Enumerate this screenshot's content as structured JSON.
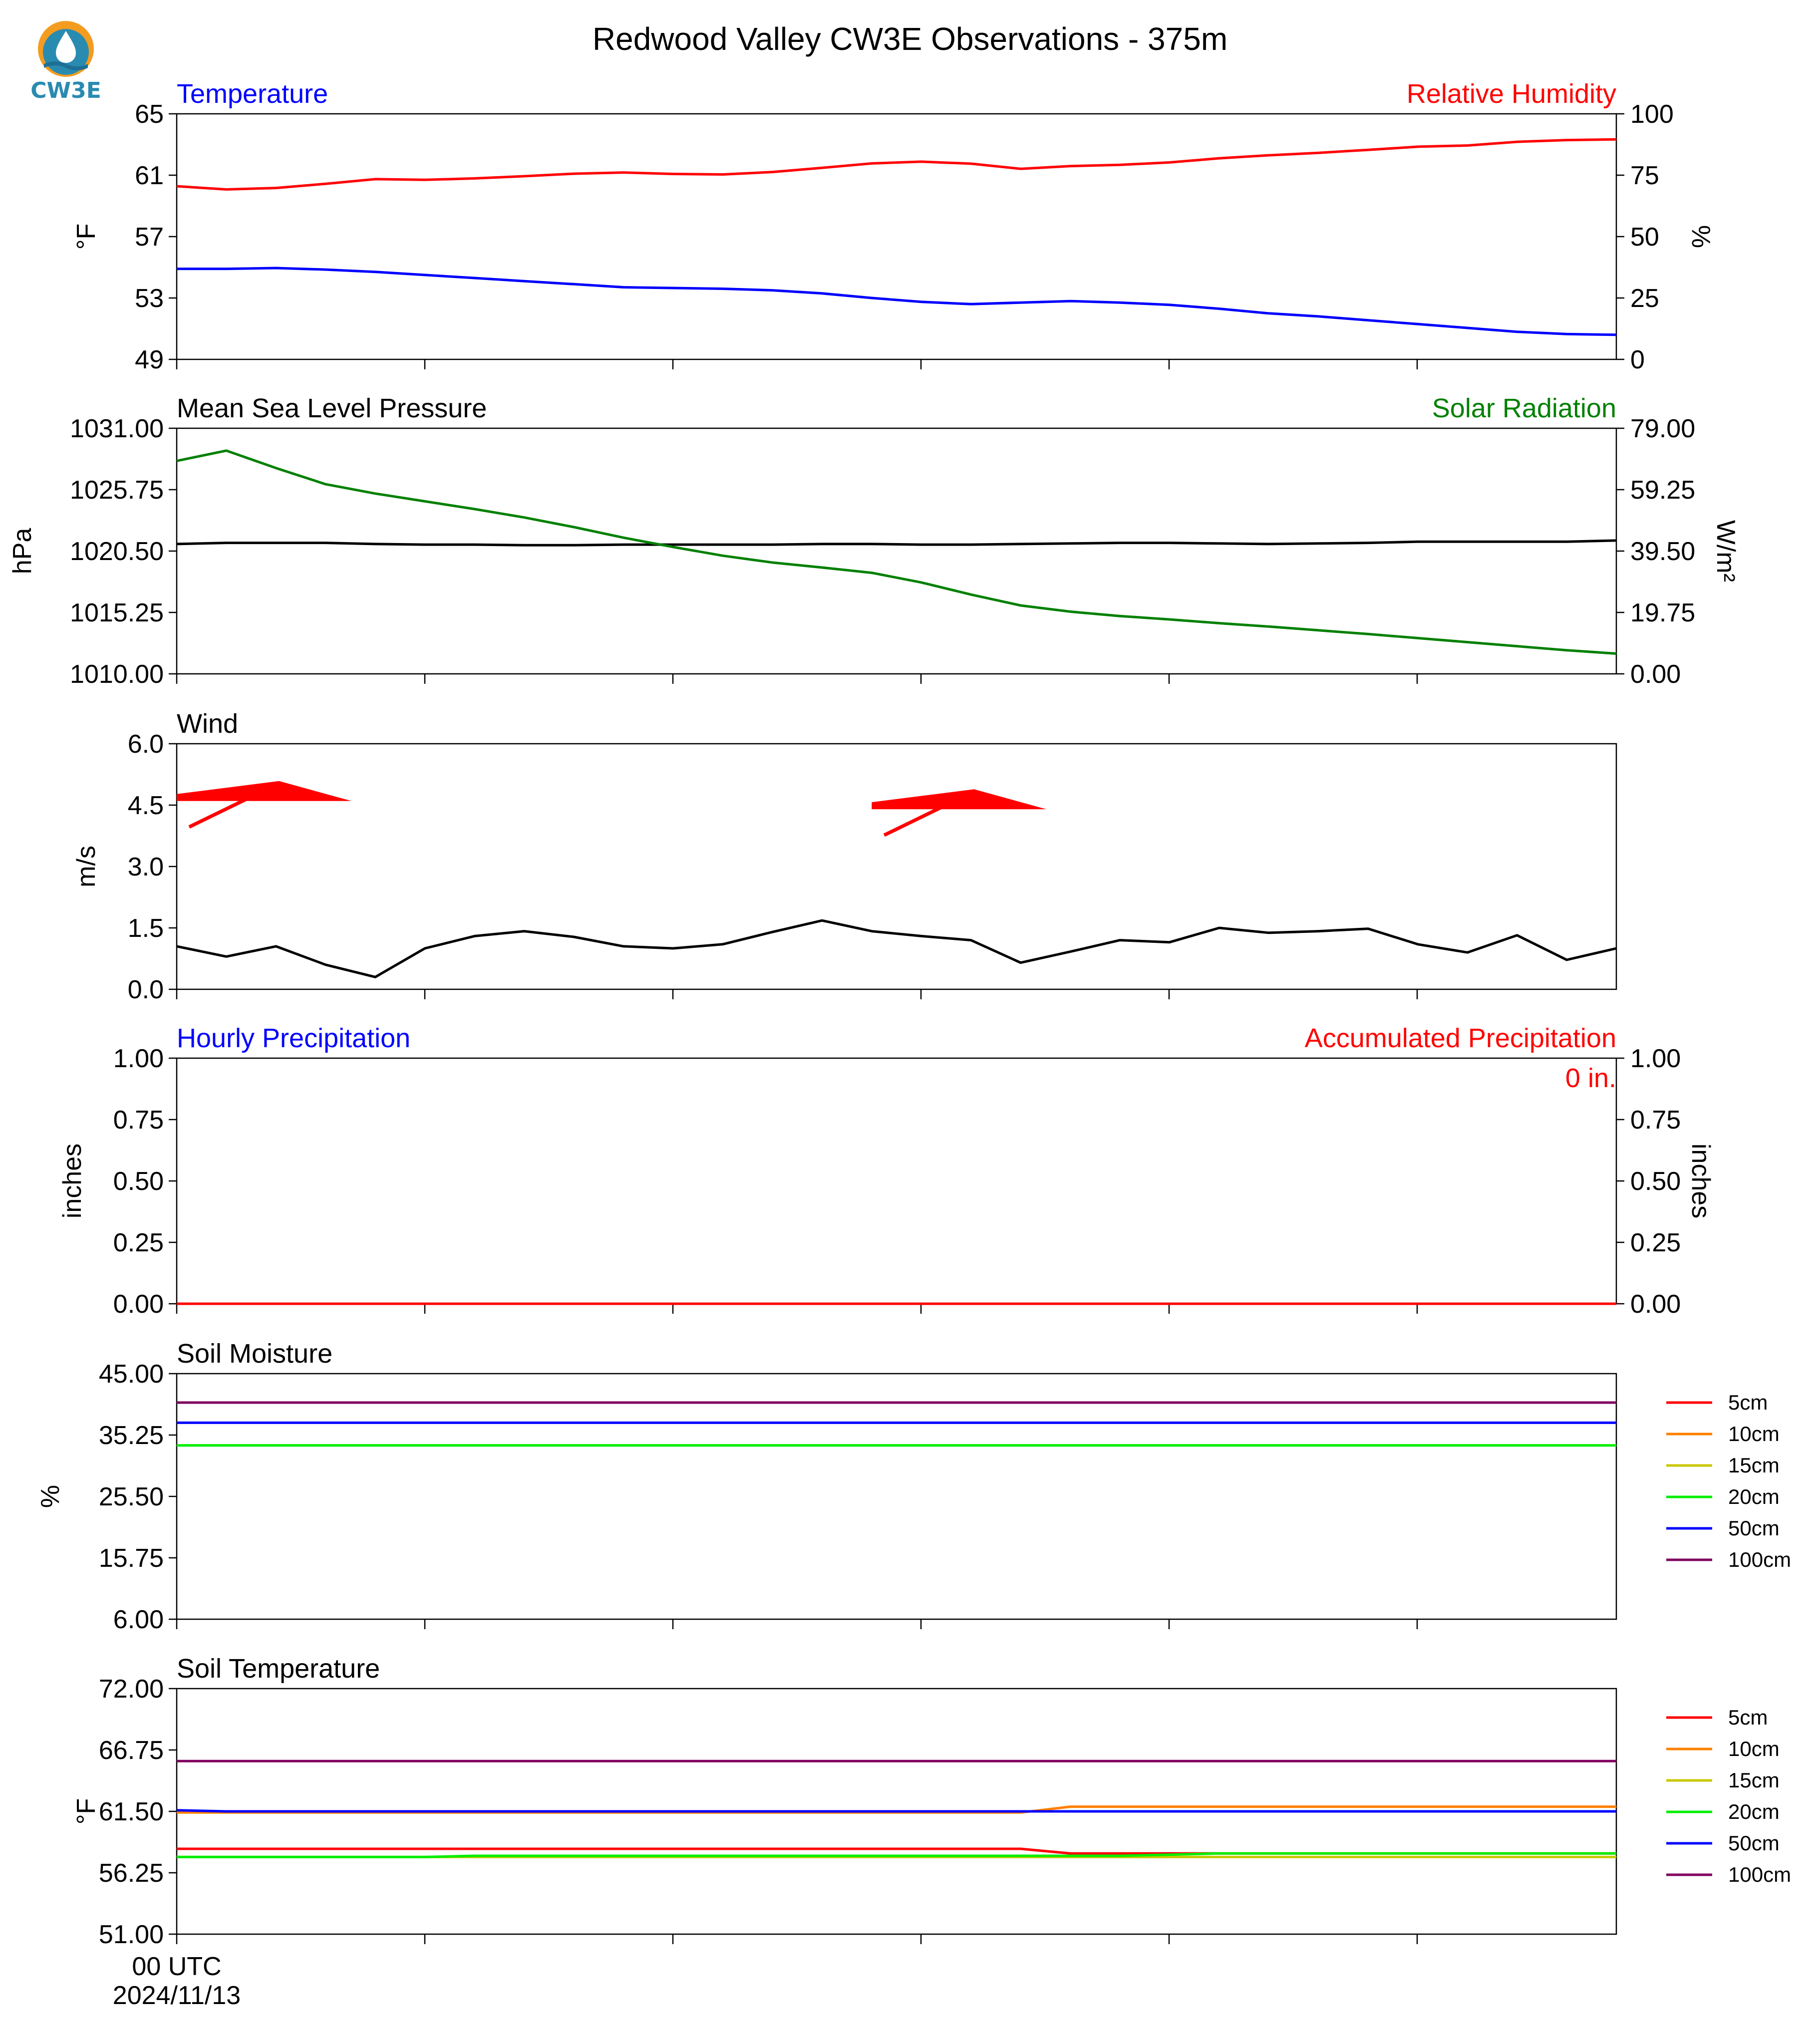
{
  "title": "Redwood Valley CW3E Observations - 375m",
  "logo": {
    "text": "CW3E",
    "colors": {
      "sun": "#f39c1f",
      "water": "#2a8bb0",
      "wave": "#1f6f95"
    }
  },
  "time_axis": {
    "start_label": "00 UTC",
    "start_date": "2024/11/13"
  },
  "colors": {
    "temperature": "#0000ff",
    "humidity": "#ff0000",
    "pressure": "#000000",
    "solar": "#008000",
    "wind": "#000000",
    "barb": "#ff0000",
    "precip_hourly": "#0000ff",
    "precip_accum": "#ff0000",
    "axis": "#000000"
  },
  "chart_data": [
    {
      "type": "line",
      "left_title": "Temperature",
      "right_title": "Relative Humidity",
      "ylabel": "°F",
      "ylabel_right": "%",
      "ylim": [
        49,
        65
      ],
      "yticks": [
        "65",
        "61",
        "57",
        "53",
        "49"
      ],
      "ylim_right": [
        0,
        100
      ],
      "yticks_right": [
        "100",
        "75",
        "50",
        "25",
        "0"
      ],
      "x": [
        0,
        1,
        2,
        3,
        4,
        5,
        6,
        7,
        8,
        9,
        10,
        11,
        12,
        13,
        14,
        15,
        16,
        17,
        18,
        19,
        20,
        21,
        22,
        23,
        24,
        25,
        26,
        27,
        28,
        29
      ],
      "series": [
        {
          "axis": "left",
          "color": "#0000ff",
          "values": [
            54.9,
            54.9,
            54.95,
            54.85,
            54.7,
            54.5,
            54.3,
            54.1,
            53.9,
            53.7,
            53.65,
            53.6,
            53.5,
            53.3,
            53.0,
            52.75,
            52.6,
            52.7,
            52.8,
            52.7,
            52.55,
            52.3,
            52.0,
            51.8,
            51.55,
            51.3,
            51.05,
            50.8,
            50.65,
            50.6
          ]
        },
        {
          "axis": "right",
          "color": "#ff0000",
          "values": [
            70.5,
            69.2,
            69.8,
            71.5,
            73.4,
            73.1,
            73.7,
            74.6,
            75.6,
            76.1,
            75.5,
            75.3,
            76.3,
            78.0,
            79.8,
            80.5,
            79.7,
            77.6,
            78.7,
            79.2,
            80.2,
            81.9,
            83.1,
            84.1,
            85.3,
            86.6,
            87.1,
            88.6,
            89.3,
            89.6
          ]
        }
      ]
    },
    {
      "type": "line",
      "left_title": "Mean Sea Level Pressure",
      "right_title": "Solar Radiation",
      "ylabel": "hPa",
      "ylabel_right": "W/m²",
      "ylim": [
        1010,
        1031
      ],
      "yticks": [
        "1031.00",
        "1025.75",
        "1020.50",
        "1015.25",
        "1010.00"
      ],
      "ylim_right": [
        0,
        79
      ],
      "yticks_right": [
        "79.00",
        "59.25",
        "39.50",
        "19.75",
        "0.00"
      ],
      "x": [
        0,
        1,
        2,
        3,
        4,
        5,
        6,
        7,
        8,
        9,
        10,
        11,
        12,
        13,
        14,
        15,
        16,
        17,
        18,
        19,
        20,
        21,
        22,
        23,
        24,
        25,
        26,
        27,
        28,
        29
      ],
      "series": [
        {
          "axis": "left",
          "color": "#000000",
          "values": [
            1021.1,
            1021.2,
            1021.2,
            1021.2,
            1021.1,
            1021.05,
            1021.05,
            1021.0,
            1021.0,
            1021.05,
            1021.05,
            1021.05,
            1021.05,
            1021.1,
            1021.1,
            1021.05,
            1021.05,
            1021.1,
            1021.15,
            1021.2,
            1021.2,
            1021.15,
            1021.1,
            1021.15,
            1021.2,
            1021.3,
            1021.3,
            1021.3,
            1021.3,
            1021.4
          ]
        },
        {
          "axis": "right",
          "color": "#008000",
          "values": [
            68.5,
            71.8,
            66.2,
            61.0,
            58.0,
            55.5,
            53.0,
            50.3,
            47.2,
            43.8,
            40.8,
            38.0,
            35.8,
            34.2,
            32.5,
            29.4,
            25.5,
            22.0,
            20.0,
            18.6,
            17.5,
            16.3,
            15.2,
            14.0,
            12.8,
            11.5,
            10.2,
            8.9,
            7.6,
            6.5
          ]
        }
      ]
    },
    {
      "type": "line",
      "left_title": "Wind",
      "ylabel": "m/s",
      "ylim": [
        0,
        6
      ],
      "yticks": [
        "6.0",
        "4.5",
        "3.0",
        "1.5",
        "0.0"
      ],
      "x": [
        0,
        1,
        2,
        3,
        4,
        5,
        6,
        7,
        8,
        9,
        10,
        11,
        12,
        13,
        14,
        15,
        16,
        17,
        18,
        19,
        20,
        21,
        22,
        23,
        24,
        25,
        26,
        27,
        28,
        29
      ],
      "series": [
        {
          "axis": "left",
          "color": "#000000",
          "values": [
            1.05,
            0.8,
            1.05,
            0.6,
            0.3,
            1.0,
            1.3,
            1.42,
            1.28,
            1.05,
            1.0,
            1.1,
            1.4,
            1.68,
            1.42,
            1.3,
            1.2,
            0.65,
            0.92,
            1.2,
            1.15,
            1.5,
            1.38,
            1.42,
            1.48,
            1.1,
            0.9,
            1.32,
            0.72,
            1.0
          ]
        }
      ],
      "barbs": [
        {
          "x": 0,
          "speed_y": 4.6,
          "direction": "west-southwest"
        },
        {
          "x": 14,
          "speed_y": 4.4,
          "direction": "west-southwest"
        }
      ]
    },
    {
      "type": "line",
      "left_title": "Hourly Precipitation",
      "right_title": "Accumulated Precipitation",
      "ylabel": "inches",
      "ylabel_right": "inches",
      "ylim": [
        0,
        1
      ],
      "yticks": [
        "1.00",
        "0.75",
        "0.50",
        "0.25",
        "0.00"
      ],
      "ylim_right": [
        0,
        1
      ],
      "yticks_right": [
        "1.00",
        "0.75",
        "0.50",
        "0.25",
        "0.00"
      ],
      "annotation": "0 in.",
      "x": [
        0,
        29
      ],
      "series": [
        {
          "axis": "left",
          "color": "#0000ff",
          "values": [
            0,
            0
          ]
        },
        {
          "axis": "right",
          "color": "#ff0000",
          "values": [
            0,
            0
          ]
        }
      ]
    },
    {
      "type": "line",
      "left_title": "Soil Moisture",
      "ylabel": "%",
      "ylim": [
        6,
        45
      ],
      "yticks": [
        "45.00",
        "35.25",
        "25.50",
        "15.75",
        "6.00"
      ],
      "x": [
        0,
        29
      ],
      "series": [
        {
          "name": "5cm",
          "color": "#ff0000",
          "values": [
            null,
            null
          ]
        },
        {
          "name": "10cm",
          "color": "#ff8000",
          "values": [
            null,
            null
          ]
        },
        {
          "name": "15cm",
          "color": "#c8c800",
          "values": [
            null,
            null
          ]
        },
        {
          "name": "20cm",
          "color": "#00ee00",
          "values": [
            33.6,
            33.6
          ]
        },
        {
          "name": "50cm",
          "color": "#0000ff",
          "values": [
            37.2,
            37.2
          ]
        },
        {
          "name": "100cm",
          "color": "#800060",
          "values": [
            40.4,
            40.4
          ]
        }
      ]
    },
    {
      "type": "line",
      "left_title": "Soil Temperature",
      "ylabel": "°F",
      "ylim": [
        51,
        72
      ],
      "yticks": [
        "72.00",
        "66.75",
        "61.50",
        "56.25",
        "51.00"
      ],
      "x": [
        0,
        1,
        2,
        3,
        4,
        5,
        6,
        7,
        8,
        9,
        10,
        11,
        12,
        13,
        14,
        15,
        16,
        17,
        18,
        19,
        20,
        21,
        22,
        23,
        24,
        25,
        26,
        27,
        28,
        29
      ],
      "series": [
        {
          "name": "5cm",
          "color": "#ff0000",
          "values": [
            58.3,
            58.3,
            58.3,
            58.3,
            58.3,
            58.3,
            58.3,
            58.3,
            58.3,
            58.3,
            58.3,
            58.3,
            58.3,
            58.3,
            58.3,
            58.3,
            58.3,
            58.3,
            57.9,
            57.9,
            57.9,
            57.9,
            57.9,
            57.9,
            57.9,
            57.9,
            57.9,
            57.9,
            57.9,
            57.9
          ]
        },
        {
          "name": "10cm",
          "color": "#ff8000",
          "values": [
            61.4,
            61.4,
            61.4,
            61.4,
            61.4,
            61.4,
            61.4,
            61.4,
            61.4,
            61.4,
            61.4,
            61.4,
            61.4,
            61.4,
            61.4,
            61.4,
            61.4,
            61.4,
            61.9,
            61.9,
            61.9,
            61.9,
            61.9,
            61.9,
            61.9,
            61.9,
            61.9,
            61.9,
            61.9,
            61.9
          ]
        },
        {
          "name": "15cm",
          "color": "#c8c800",
          "values": [
            57.6,
            57.6,
            57.6,
            57.6,
            57.6,
            57.6,
            57.6,
            57.6,
            57.6,
            57.6,
            57.6,
            57.6,
            57.6,
            57.6,
            57.6,
            57.6,
            57.6,
            57.6,
            57.6,
            57.6,
            57.6,
            57.6,
            57.6,
            57.6,
            57.6,
            57.6,
            57.6,
            57.6,
            57.6,
            57.6
          ]
        },
        {
          "name": "20cm",
          "color": "#00ee00",
          "values": [
            57.6,
            57.6,
            57.6,
            57.6,
            57.6,
            57.6,
            57.7,
            57.7,
            57.7,
            57.7,
            57.7,
            57.7,
            57.7,
            57.7,
            57.7,
            57.7,
            57.7,
            57.7,
            57.7,
            57.7,
            57.8,
            57.9,
            57.9,
            57.9,
            57.9,
            57.9,
            57.9,
            57.9,
            57.9,
            57.9
          ]
        },
        {
          "name": "50cm",
          "color": "#0000ff",
          "values": [
            61.6,
            61.5,
            61.5,
            61.5,
            61.5,
            61.5,
            61.5,
            61.5,
            61.5,
            61.5,
            61.5,
            61.5,
            61.5,
            61.5,
            61.5,
            61.5,
            61.5,
            61.5,
            61.5,
            61.5,
            61.5,
            61.5,
            61.5,
            61.5,
            61.5,
            61.5,
            61.5,
            61.5,
            61.5,
            61.5
          ]
        },
        {
          "name": "100cm",
          "color": "#800060",
          "values": [
            65.8,
            65.8,
            65.8,
            65.8,
            65.8,
            65.8,
            65.8,
            65.8,
            65.8,
            65.8,
            65.8,
            65.8,
            65.8,
            65.8,
            65.8,
            65.8,
            65.8,
            65.8,
            65.8,
            65.8,
            65.8,
            65.8,
            65.8,
            65.8,
            65.8,
            65.8,
            65.8,
            65.8,
            65.8,
            65.8
          ]
        }
      ]
    }
  ]
}
